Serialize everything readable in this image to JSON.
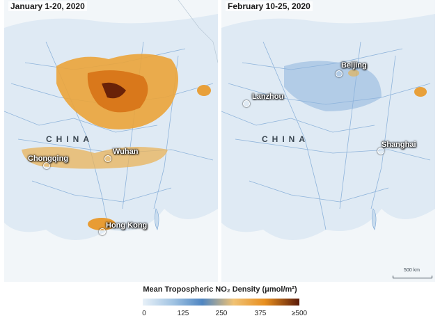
{
  "left_panel": {
    "title": "January 1-20, 2020",
    "country_label": "CHINA",
    "cities": [
      {
        "name": "Chongqing"
      },
      {
        "name": "Wuhan"
      },
      {
        "name": "Hong Kong"
      }
    ]
  },
  "right_panel": {
    "title": "February 10-25, 2020",
    "country_label": "CHINA",
    "cities": [
      {
        "name": "Beijing"
      },
      {
        "name": "Lanzhou"
      },
      {
        "name": "Shanghai"
      }
    ],
    "scale_label": "500 km"
  },
  "legend": {
    "title": "Mean Tropospheric NO₂ Density (μmol/m²)",
    "ticks": [
      "0",
      "125",
      "250",
      "375",
      "≥500"
    ],
    "colors": {
      "low": "#e8f1f8",
      "mid": "#4f86c2",
      "high": "#e88f1f",
      "max": "#5a1a08"
    }
  }
}
